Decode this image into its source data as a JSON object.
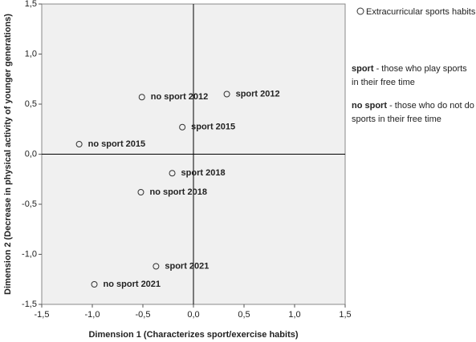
{
  "chart_data": {
    "type": "scatter",
    "x_label": "Dimension 1 (Characterizes sport/exercise habits)",
    "y_label": "Dimension 2 (Decrease in physical activity of younger generations)",
    "xlim": [
      -1.5,
      1.5
    ],
    "ylim": [
      -1.5,
      1.5
    ],
    "xticks": [
      {
        "value": -1.5,
        "label": "-1,5"
      },
      {
        "value": -1.0,
        "label": "-1,0"
      },
      {
        "value": -0.5,
        "label": "-0,5"
      },
      {
        "value": 0,
        "label": "0,0"
      },
      {
        "value": 0.5,
        "label": "0,5"
      },
      {
        "value": 1.0,
        "label": "1,0"
      },
      {
        "value": 1.5,
        "label": "1,5"
      }
    ],
    "yticks": [
      {
        "value": -1.5,
        "label": "-1,5"
      },
      {
        "value": -1.0,
        "label": "-1,0"
      },
      {
        "value": -0.5,
        "label": "-0,5"
      },
      {
        "value": 0,
        "label": "0,0"
      },
      {
        "value": 0.5,
        "label": "0,5"
      },
      {
        "value": 1.0,
        "label": "1,0"
      },
      {
        "value": 1.5,
        "label": "1,5"
      }
    ],
    "series": [
      {
        "name": "Extracurricular sports habits",
        "color": "#333333",
        "x": [
          -0.51,
          0.33,
          -0.11,
          -1.13,
          -0.21,
          -0.52,
          -0.37,
          -0.98
        ],
        "values": [
          0.57,
          0.6,
          0.27,
          0.1,
          -0.19,
          -0.38,
          -1.12,
          -1.3
        ],
        "labels": [
          "no sport 2012",
          "sport 2012",
          "sport 2015",
          "no sport 2015",
          "sport 2018",
          "no sport 2018",
          "sport 2021",
          "no sport 2021"
        ]
      }
    ],
    "annotations": [
      {
        "term": "sport",
        "text": "- those who play sports in their free time"
      },
      {
        "term": "no sport",
        "text": "- those who do not do sports in their free time"
      }
    ]
  }
}
